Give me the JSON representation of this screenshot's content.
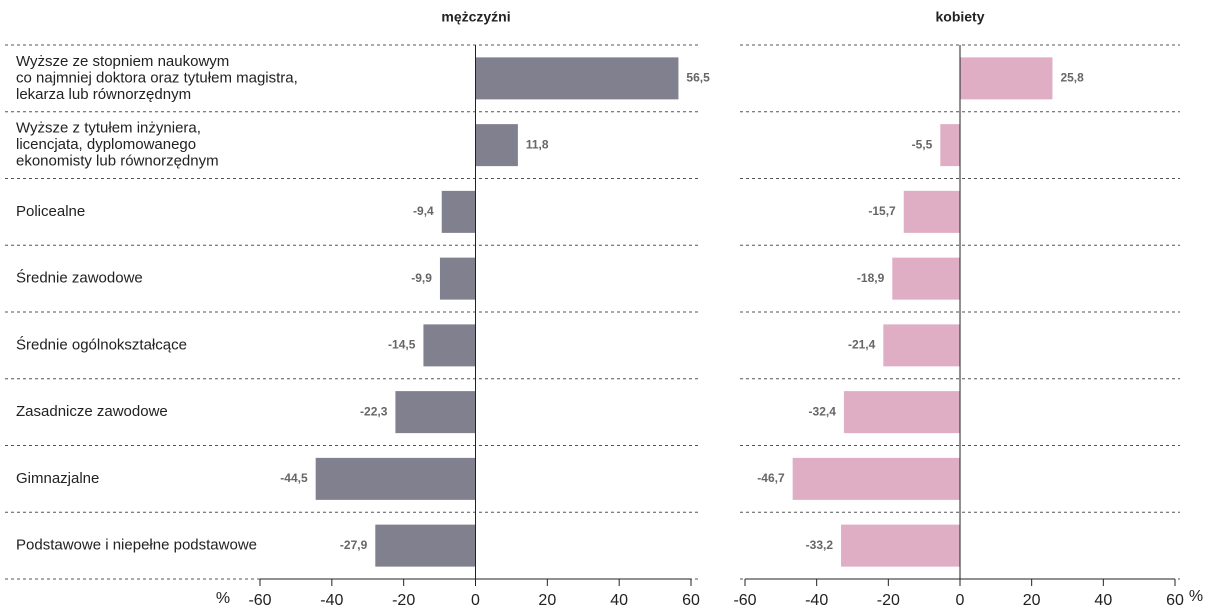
{
  "chart_data": [
    {
      "type": "bar",
      "title": "mężczyźni",
      "xlabel": "%",
      "categories": [
        "Wyższe ze stopniem naukowym\nco najmniej doktora oraz tytułem magistra,\nlekarza lub równorzędnym",
        "Wyższe z tytułem inżyniera,\nlicencjata, dyplomowanego\nekonomisty lub równorzędnym",
        "Policealne",
        "Średnie zawodowe",
        "Średnie ogólnokształcące",
        "Zasadnicze zawodowe",
        "Gimnazjalne",
        "Podstawowe i niepełne podstawowe"
      ],
      "values": [
        56.5,
        11.8,
        -9.4,
        -9.9,
        -14.5,
        -22.3,
        -44.5,
        -27.9
      ],
      "value_labels": [
        "56,5",
        "11,8",
        "-9,4",
        "-9,9",
        "-14,5",
        "-22,3",
        "-44,5",
        "-27,9"
      ],
      "color": "#80808e",
      "xlim": [
        -60,
        60
      ],
      "xticks": [
        -60,
        -40,
        -20,
        0,
        20,
        40,
        60
      ]
    },
    {
      "type": "bar",
      "title": "kobiety",
      "xlabel": "%",
      "values": [
        25.8,
        -5.5,
        -15.7,
        -18.9,
        -21.4,
        -32.4,
        -46.7,
        -33.2
      ],
      "value_labels": [
        "25,8",
        "-5,5",
        "-15,7",
        "-18,9",
        "-21,4",
        "-32,4",
        "-46,7",
        "-33,2"
      ],
      "color": "#dfaec4",
      "xlim": [
        -60,
        60
      ],
      "xticks": [
        -60,
        -40,
        -20,
        0,
        20,
        40,
        60
      ]
    }
  ]
}
